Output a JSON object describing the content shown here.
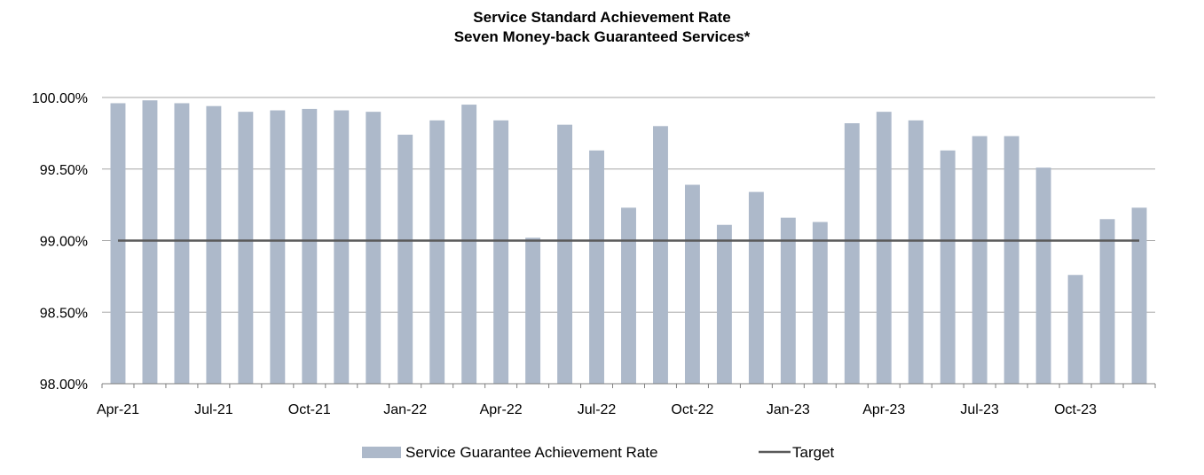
{
  "chart_data": {
    "type": "bar",
    "title": "Service Standard Achievement Rate",
    "subtitle": "Seven Money-back Guaranteed Services*",
    "x": [
      "Apr-21",
      "May-21",
      "Jun-21",
      "Jul-21",
      "Aug-21",
      "Sep-21",
      "Oct-21",
      "Nov-21",
      "Dec-21",
      "Jan-22",
      "Feb-22",
      "Mar-22",
      "Apr-22",
      "May-22",
      "Jun-22",
      "Jul-22",
      "Aug-22",
      "Sep-22",
      "Oct-22",
      "Nov-22",
      "Dec-22",
      "Jan-23",
      "Feb-23",
      "Mar-23",
      "Apr-23",
      "May-23",
      "Jun-23",
      "Jul-23",
      "Aug-23",
      "Sep-23",
      "Oct-23",
      "Nov-23",
      "Dec-23"
    ],
    "x_tick_labels": [
      "Apr-21",
      "Jul-21",
      "Oct-21",
      "Jan-22",
      "Apr-22",
      "Jul-22",
      "Oct-22",
      "Jan-23",
      "Apr-23",
      "Jul-23",
      "Oct-23"
    ],
    "y_tick_labels": [
      "100.00%",
      "99.50%",
      "99.00%",
      "98.50%",
      "98.00%"
    ],
    "ylim": [
      98.0,
      100.0
    ],
    "grid": true,
    "legend_position": "bottom",
    "series": [
      {
        "name": "Service Guarantee Achievement Rate",
        "type": "bar",
        "color": "#adb9ca",
        "values": [
          99.96,
          99.98,
          99.96,
          99.94,
          99.9,
          99.91,
          99.92,
          99.91,
          99.9,
          99.74,
          99.84,
          99.95,
          99.84,
          99.02,
          99.81,
          99.63,
          99.23,
          99.8,
          99.39,
          99.11,
          99.34,
          99.16,
          99.13,
          99.82,
          99.9,
          99.84,
          99.63,
          99.73,
          99.73,
          99.51,
          98.76,
          99.15,
          99.23
        ]
      },
      {
        "name": "Target",
        "type": "line",
        "color": "#595959",
        "values": [
          99.0,
          99.0,
          99.0,
          99.0,
          99.0,
          99.0,
          99.0,
          99.0,
          99.0,
          99.0,
          99.0,
          99.0,
          99.0,
          99.0,
          99.0,
          99.0,
          99.0,
          99.0,
          99.0,
          99.0,
          99.0,
          99.0,
          99.0,
          99.0,
          99.0,
          99.0,
          99.0,
          99.0,
          99.0,
          99.0,
          99.0,
          99.0,
          99.0
        ]
      }
    ],
    "gridline_color": "#a6a6a6"
  }
}
